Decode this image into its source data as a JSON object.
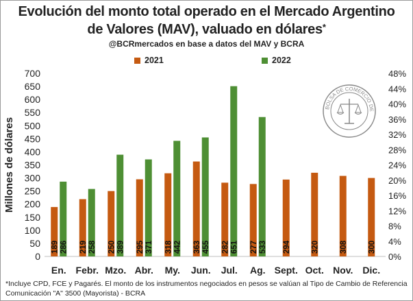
{
  "seal": {
    "text": "BOLSA DE COMERCIO DE ROSARIO"
  },
  "chart_data": {
    "type": "bar",
    "title_line1": "Evolución del monto total operado en el Mercado Argentino",
    "title_line2": "de Valores (MAV), valuado en dólares",
    "title_asterisk": "*",
    "subtitle": "@BCRmercados en base a datos del MAV y BCRA",
    "ylabel": "Millones de dólares",
    "categories": [
      "En.",
      "Febr.",
      "Mzo.",
      "Abr.",
      "My.",
      "Jun.",
      "Jul.",
      "Ag.",
      "Sept.",
      "Oct.",
      "Nov.",
      "Dic."
    ],
    "series": [
      {
        "name": "2021",
        "color": "#c55a11",
        "values": [
          189,
          219,
          250,
          295,
          318,
          363,
          282,
          277,
          294,
          320,
          308,
          300
        ]
      },
      {
        "name": "2022",
        "color": "#4e8f34",
        "values": [
          286,
          258,
          389,
          371,
          442,
          455,
          651,
          533,
          null,
          null,
          null,
          null
        ]
      }
    ],
    "ylim": [
      0,
      700
    ],
    "yticks": [
      0,
      50,
      100,
      150,
      200,
      250,
      300,
      350,
      400,
      450,
      500,
      550,
      600,
      650,
      700
    ],
    "y2ticks": [
      "0%",
      "4%",
      "8%",
      "12%",
      "16%",
      "20%",
      "24%",
      "28%",
      "32%",
      "36%",
      "40%",
      "44%",
      "48%"
    ],
    "legend_position": "top",
    "grid": false,
    "footnote_line1": "*Incluye CPD, FCE y Pagarés. El monto de los instrumentos  negociados en pesos se valúan al Tipo de Cambio de Referencia",
    "footnote_line2": "Comunicación \"A\" 3500 (Mayorista) - BCRA"
  }
}
